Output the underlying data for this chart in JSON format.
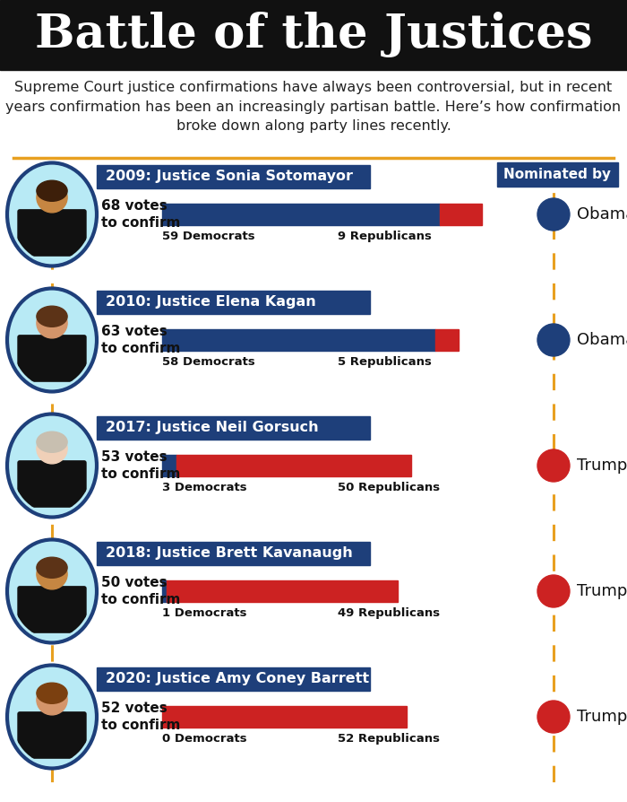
{
  "title": "Battle of the Justices",
  "subtitle": "Supreme Court justice confirmations have always been controversial, but in recent\nyears confirmation has been an increasingly partisan battle. Here’s how confirmation\nbroke down along party lines recently.",
  "bg_color": "#ffffff",
  "title_bg": "#111111",
  "header_line_color": "#e8a020",
  "justices": [
    {
      "year": "2009",
      "name": "Justice Sonia Sotomayor",
      "total_votes": 68,
      "dem_votes": 59,
      "rep_votes": 9,
      "nominator": "Obama",
      "party": "Democrat",
      "circle_bg": "#b8eaf5",
      "header_bg": "#1e3f7a",
      "hair_color": "#3d1f0a",
      "skin_color": "#c68642",
      "suit_color": "#111111"
    },
    {
      "year": "2010",
      "name": "Justice Elena Kagan",
      "total_votes": 63,
      "dem_votes": 58,
      "rep_votes": 5,
      "nominator": "Obama",
      "party": "Democrat",
      "circle_bg": "#b8eaf5",
      "header_bg": "#1e3f7a",
      "hair_color": "#5c3317",
      "skin_color": "#d4956a",
      "suit_color": "#111111"
    },
    {
      "year": "2017",
      "name": "Justice Neil Gorsuch",
      "total_votes": 53,
      "dem_votes": 3,
      "rep_votes": 50,
      "nominator": "Trump",
      "party": "Republican",
      "circle_bg": "#b8eaf5",
      "header_bg": "#1e3f7a",
      "hair_color": "#c8bfb0",
      "skin_color": "#f0d0b8",
      "suit_color": "#111111"
    },
    {
      "year": "2018",
      "name": "Justice Brett Kavanaugh",
      "total_votes": 50,
      "dem_votes": 1,
      "rep_votes": 49,
      "nominator": "Trump",
      "party": "Republican",
      "circle_bg": "#b8eaf5",
      "header_bg": "#1e3f7a",
      "hair_color": "#5c3317",
      "skin_color": "#c68642",
      "suit_color": "#111111"
    },
    {
      "year": "2020",
      "name": "Justice Amy Coney Barrett",
      "total_votes": 52,
      "dem_votes": 0,
      "rep_votes": 52,
      "nominator": "Trump",
      "party": "Republican",
      "circle_bg": "#b8eaf5",
      "header_bg": "#1e3f7a",
      "hair_color": "#7b4010",
      "skin_color": "#d4956a",
      "suit_color": "#111111"
    }
  ],
  "dem_color": "#1e3f7a",
  "rep_color": "#cc2222",
  "obama_color": "#1e3f7a",
  "trump_color": "#cc2222",
  "nominated_bg": "#1e3f7a",
  "dashed_line_color": "#e8a020",
  "max_bar_votes": 68,
  "title_fontsize": 38,
  "subtitle_fontsize": 11.5
}
